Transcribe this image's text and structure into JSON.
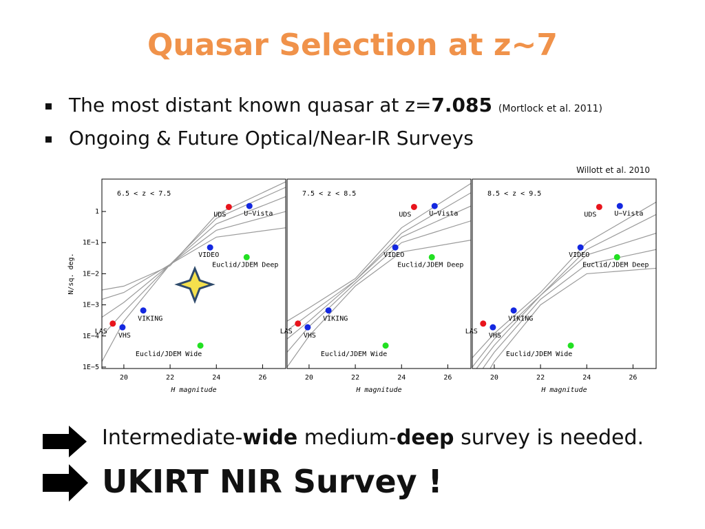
{
  "title": "Quasar Selection at z~7",
  "bullets": [
    {
      "text": "The most distant known quasar at z=",
      "bold": "7.085",
      "note": "(Mortlock et al. 2011)"
    },
    {
      "text": "Ongoing & Future Optical/Near-IR Surveys"
    }
  ],
  "credit": "Willott et al. 2010",
  "chart_data": [
    {
      "type": "scatter",
      "annotation": "6.5 < z < 7.5",
      "xlabel": "H magnitude",
      "ylabel": "N/sq. deg.",
      "log_y": true,
      "xlim": [
        19.05,
        27
      ],
      "ylim": [
        9e-06,
        11
      ],
      "xticks": [
        20,
        22,
        24,
        26
      ],
      "yticks": [
        1,
        {
          "value": 0.1,
          "label": "1E−1"
        },
        {
          "value": 0.01,
          "label": "1E−2"
        },
        {
          "value": 0.001,
          "label": "1E−3"
        },
        {
          "value": 0.0001,
          "label": "1E−4"
        },
        {
          "value": 1e-05,
          "label": "1E−5"
        }
      ],
      "curve_color": "#9a9a9a",
      "curve_x": [
        19.05,
        20,
        22,
        24,
        27
      ],
      "curves": [
        [
          1.5e-05,
          0.0003,
          0.02,
          0.15,
          0.3
        ],
        [
          0.0001,
          0.0006,
          0.02,
          0.25,
          1
        ],
        [
          0.0004,
          0.0012,
          0.02,
          0.4,
          3
        ],
        [
          0.0015,
          0.0025,
          0.02,
          0.6,
          6
        ],
        [
          0.003,
          0.004,
          0.018,
          0.8,
          9
        ]
      ],
      "points": [
        {
          "label": "UDS",
          "x": 24.54,
          "y": 1.4,
          "color": "#e8141c"
        },
        {
          "label": "U−Vista",
          "x": 25.43,
          "y": 1.5,
          "color": "#1428e0"
        },
        {
          "label": "VIDEO",
          "x": 23.73,
          "y": 0.07,
          "color": "#1428e0"
        },
        {
          "label": "Euclid/JDEM Deep",
          "x": 25.31,
          "y": 0.034,
          "color": "#22e022"
        },
        {
          "label": "VIKING",
          "x": 20.84,
          "y": 0.00066,
          "color": "#1428e0"
        },
        {
          "label": "LAS",
          "x": 19.52,
          "y": 0.00025,
          "color": "#e8141c"
        },
        {
          "label": "VHS",
          "x": 19.94,
          "y": 0.00019,
          "color": "#1428e0"
        },
        {
          "label": "Euclid/JDEM Wide",
          "x": 23.31,
          "y": 4.9e-05,
          "color": "#22e022"
        }
      ]
    },
    {
      "type": "scatter",
      "annotation": "7.5 < z < 8.5",
      "xlabel": "H magnitude",
      "log_y": true,
      "xlim": [
        19.05,
        27
      ],
      "ylim": [
        9e-06,
        11
      ],
      "xticks": [
        20,
        22,
        24,
        26
      ],
      "curve_color": "#9a9a9a",
      "curve_x": [
        19.05,
        20,
        22,
        24,
        27
      ],
      "curves": [
        [
          1e-05,
          0.0001,
          0.004,
          0.05,
          0.12
        ],
        [
          3e-05,
          0.0002,
          0.005,
          0.1,
          0.5
        ],
        [
          8e-05,
          0.0003,
          0.006,
          0.15,
          1.5
        ],
        [
          0.00015,
          0.0005,
          0.006,
          0.2,
          4
        ],
        [
          0.0003,
          0.0008,
          0.007,
          0.3,
          8
        ]
      ],
      "points": [
        {
          "label": "UDS",
          "x": 24.54,
          "y": 1.4,
          "color": "#e8141c"
        },
        {
          "label": "U−Vista",
          "x": 25.43,
          "y": 1.5,
          "color": "#1428e0"
        },
        {
          "label": "VIDEO",
          "x": 23.73,
          "y": 0.07,
          "color": "#1428e0"
        },
        {
          "label": "Euclid/JDEM Deep",
          "x": 25.31,
          "y": 0.034,
          "color": "#22e022"
        },
        {
          "label": "VIKING",
          "x": 20.84,
          "y": 0.00066,
          "color": "#1428e0"
        },
        {
          "label": "LAS",
          "x": 19.52,
          "y": 0.00025,
          "color": "#e8141c"
        },
        {
          "label": "VHS",
          "x": 19.94,
          "y": 0.00019,
          "color": "#1428e0"
        },
        {
          "label": "Euclid/JDEM Wide",
          "x": 23.31,
          "y": 4.9e-05,
          "color": "#22e022"
        }
      ]
    },
    {
      "type": "scatter",
      "annotation": "8.5 < z < 9.5",
      "xlabel": "H magnitude",
      "log_y": true,
      "xlim": [
        19.05,
        27
      ],
      "ylim": [
        9e-06,
        11
      ],
      "xticks": [
        20,
        22,
        24,
        26
      ],
      "curve_color": "#9a9a9a",
      "curve_x": [
        19.05,
        20,
        22,
        24,
        27
      ],
      "curves": [
        [
          1e-06,
          1.5e-05,
          0.001,
          0.01,
          0.015
        ],
        [
          3e-06,
          3e-05,
          0.0015,
          0.02,
          0.06
        ],
        [
          6e-06,
          5e-05,
          0.002,
          0.04,
          0.2
        ],
        [
          1e-05,
          8e-05,
          0.002,
          0.06,
          0.8
        ],
        [
          2e-05,
          0.00012,
          0.0025,
          0.1,
          2
        ]
      ],
      "points": [
        {
          "label": "UDS",
          "x": 24.54,
          "y": 1.4,
          "color": "#e8141c"
        },
        {
          "label": "U−Vista",
          "x": 25.43,
          "y": 1.5,
          "color": "#1428e0"
        },
        {
          "label": "VIDEO",
          "x": 23.73,
          "y": 0.07,
          "color": "#1428e0"
        },
        {
          "label": "Euclid/JDEM Deep",
          "x": 25.31,
          "y": 0.034,
          "color": "#22e022"
        },
        {
          "label": "VIKING",
          "x": 20.84,
          "y": 0.00066,
          "color": "#1428e0"
        },
        {
          "label": "LAS",
          "x": 19.52,
          "y": 0.00025,
          "color": "#e8141c"
        },
        {
          "label": "VHS",
          "x": 19.94,
          "y": 0.00019,
          "color": "#1428e0"
        },
        {
          "label": "Euclid/JDEM Wide",
          "x": 23.31,
          "y": 4.9e-05,
          "color": "#22e022"
        }
      ]
    }
  ],
  "conclusions": [
    {
      "parts": [
        "Intermediate-",
        "wide",
        " medium-",
        "deep",
        " survey is needed."
      ]
    },
    {
      "text": "UKIRT NIR Survey !"
    }
  ]
}
